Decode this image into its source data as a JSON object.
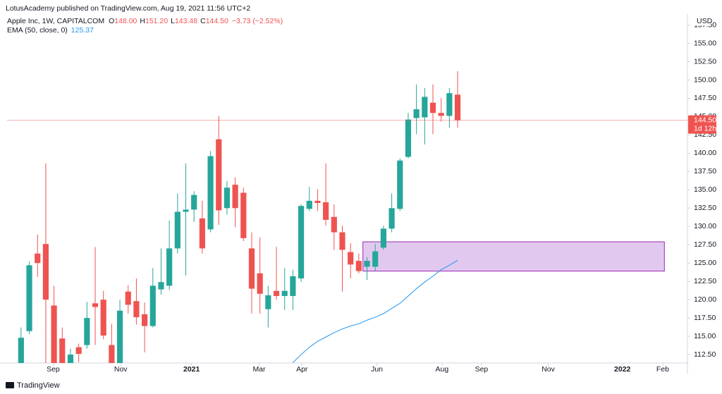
{
  "header": {
    "published": "LotusAcademy published on TradingView.com, Aug 19, 2021 11:56 UTC+2"
  },
  "legend": {
    "symbol": "Apple Inc, 1W, CAPITALCOM",
    "ohlc": [
      {
        "prefix": "O",
        "text": "148.00"
      },
      {
        "prefix": "H",
        "text": "151.20"
      },
      {
        "prefix": "L",
        "text": "143.48"
      },
      {
        "prefix": "C",
        "text": "144.50"
      }
    ],
    "change": "−3.73 (−2.52%)",
    "ema_label": "EMA (50, close, 0)",
    "ema_value": "125.37"
  },
  "footer": {
    "brand": "TradingView"
  },
  "chart_data": {
    "type": "candlestick",
    "currency": "USD",
    "up_color": "#26a69a",
    "down_color": "#ef5350",
    "open": [
      111.3,
      115.7,
      126.3,
      127.6,
      119.2,
      114.7,
      111.0,
      113.5,
      113.8,
      119.5,
      120.0,
      113.8,
      111.0,
      121.1,
      119.8,
      118.0,
      116.4,
      121.4,
      121.9,
      127.0,
      132.0,
      132.3,
      131.1,
      129.6,
      141.9,
      132.5,
      135.7,
      134.6,
      127.0,
      123.6,
      118.7,
      121.2,
      120.5,
      120.5,
      122.9,
      132.4,
      133.5,
      133.3,
      131.3,
      129.2,
      126.5,
      125.3,
      124.5,
      124.5,
      127.1,
      129.7,
      132.4,
      139.5,
      144.8,
      144.9,
      146.9,
      145.5,
      145.1,
      148.0
    ],
    "high": [
      116.2,
      125.2,
      128.9,
      138.6,
      121.9,
      116.2,
      113.3,
      114.0,
      119.7,
      127.2,
      121.2,
      116.7,
      120.0,
      122.0,
      122.9,
      119.6,
      124.3,
      127.0,
      130.8,
      134.5,
      138.6,
      134.8,
      133.5,
      140.3,
      145.1,
      136.2,
      136.7,
      135.3,
      129.2,
      128.5,
      121.9,
      127.2,
      124.3,
      124.1,
      133.0,
      135.4,
      135.1,
      138.6,
      133.0,
      130.1,
      127.7,
      126.3,
      125.8,
      127.6,
      130.1,
      134.5,
      139.3,
      145.5,
      149.4,
      148.9,
      149.4,
      147.5,
      148.9,
      151.2
    ],
    "low": [
      110.5,
      115.3,
      123.1,
      110.0,
      110.0,
      110.5,
      110.8,
      111.5,
      113.3,
      113.8,
      114.6,
      110.8,
      110.5,
      118.1,
      116.6,
      112.8,
      116.2,
      120.7,
      121.3,
      126.3,
      123.3,
      130.6,
      126.3,
      129.2,
      130.2,
      131.6,
      129.9,
      128.0,
      118.1,
      118.1,
      116.2,
      120.0,
      118.6,
      118.6,
      122.4,
      132.1,
      132.1,
      130.1,
      126.8,
      121.1,
      122.9,
      123.6,
      122.7,
      123.9,
      126.8,
      129.2,
      132.1,
      139.3,
      142.6,
      141.2,
      142.6,
      144.3,
      143.5,
      143.48
    ],
    "close": [
      114.8,
      124.7,
      125.0,
      120.0,
      111.0,
      111.0,
      112.5,
      112.6,
      117.5,
      119.0,
      115.1,
      111.0,
      118.5,
      119.3,
      117.6,
      116.4,
      121.9,
      122.4,
      127.0,
      132.0,
      132.3,
      134.3,
      127.0,
      139.6,
      132.2,
      135.3,
      132.5,
      128.4,
      121.5,
      120.8,
      120.6,
      120.5,
      121.2,
      123.2,
      132.8,
      133.5,
      133.2,
      130.9,
      129.2,
      126.8,
      124.8,
      123.9,
      125.3,
      126.6,
      129.7,
      132.5,
      139.0,
      144.6,
      146.0,
      147.7,
      145.5,
      145.1,
      148.2,
      144.5
    ],
    "ema": {
      "name": "EMA (50, close, 0)",
      "color": "#2196f3",
      "values": [
        null,
        null,
        null,
        null,
        null,
        null,
        null,
        null,
        null,
        null,
        null,
        null,
        null,
        null,
        null,
        null,
        null,
        null,
        null,
        null,
        null,
        null,
        null,
        null,
        null,
        null,
        null,
        null,
        null,
        null,
        null,
        null,
        null,
        111.4,
        112.5,
        113.5,
        114.3,
        114.9,
        115.5,
        116.0,
        116.4,
        116.7,
        117.2,
        117.6,
        118.1,
        118.8,
        119.5,
        120.5,
        121.5,
        122.4,
        123.2,
        124.1,
        124.7,
        125.37
      ]
    },
    "zone": {
      "x": [
        41.5,
        78.1
      ],
      "y": [
        123.9,
        127.9
      ],
      "fill": "#e1c8ef",
      "stroke": "#9c27b0"
    },
    "last_price": {
      "value": 144.5,
      "label": "144.50",
      "countdown": "1d 12h"
    },
    "xlim": [
      -1.7,
      80.9
    ],
    "xticks": [
      {
        "value": 3.9,
        "label": "Sep"
      },
      {
        "value": 12.1,
        "label": "Nov"
      },
      {
        "value": 20.7,
        "label": "2021"
      },
      {
        "value": 28.9,
        "label": "Mar"
      },
      {
        "value": 34.1,
        "label": "Apr"
      },
      {
        "value": 43.2,
        "label": "Jun"
      },
      {
        "value": 51.1,
        "label": "Aug"
      },
      {
        "value": 55.9,
        "label": "Sep"
      },
      {
        "value": 64.0,
        "label": "Nov"
      },
      {
        "value": 73.0,
        "label": "2022"
      },
      {
        "value": 77.9,
        "label": "Feb"
      }
    ],
    "ylim": [
      111.35,
      159.0
    ],
    "yticks": [
      {
        "value": 112.5,
        "label": "112.50"
      },
      {
        "value": 115,
        "label": "115.00"
      },
      {
        "value": 117.5,
        "label": "117.50"
      },
      {
        "value": 120,
        "label": "120.00"
      },
      {
        "value": 122.5,
        "label": "122.50"
      },
      {
        "value": 125,
        "label": "125.00"
      },
      {
        "value": 127.5,
        "label": "127.50"
      },
      {
        "value": 130,
        "label": "130.00"
      },
      {
        "value": 132.5,
        "label": "132.50"
      },
      {
        "value": 135,
        "label": "135.00"
      },
      {
        "value": 137.5,
        "label": "137.50"
      },
      {
        "value": 140,
        "label": "140.00"
      },
      {
        "value": 142.5,
        "label": "142.50"
      },
      {
        "value": 145,
        "label": "145.00"
      },
      {
        "value": 147.5,
        "label": "147.50"
      },
      {
        "value": 150,
        "label": "150.00"
      },
      {
        "value": 152.5,
        "label": "152.50"
      },
      {
        "value": 155,
        "label": "155.00"
      },
      {
        "value": 157.5,
        "label": "157.50"
      }
    ],
    "grid": false
  }
}
